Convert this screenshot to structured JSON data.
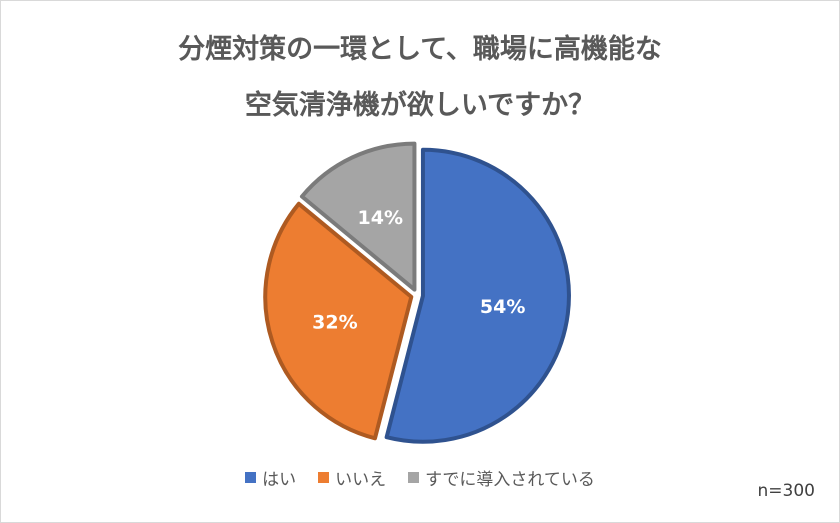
{
  "chart_data": {
    "type": "pie",
    "title_lines": [
      "分煙対策の一環として、職場に高機能な",
      "空気清浄機が欲しいですか？"
    ],
    "categories": [
      "はい",
      "いいえ",
      "すでに導入されている"
    ],
    "values": [
      54,
      32,
      14
    ],
    "value_labels": [
      "54%",
      "32%",
      "14%"
    ],
    "colors": [
      "#4472c4",
      "#ed7d31",
      "#a5a5a5"
    ],
    "legend_position": "bottom",
    "note": "n=300"
  }
}
